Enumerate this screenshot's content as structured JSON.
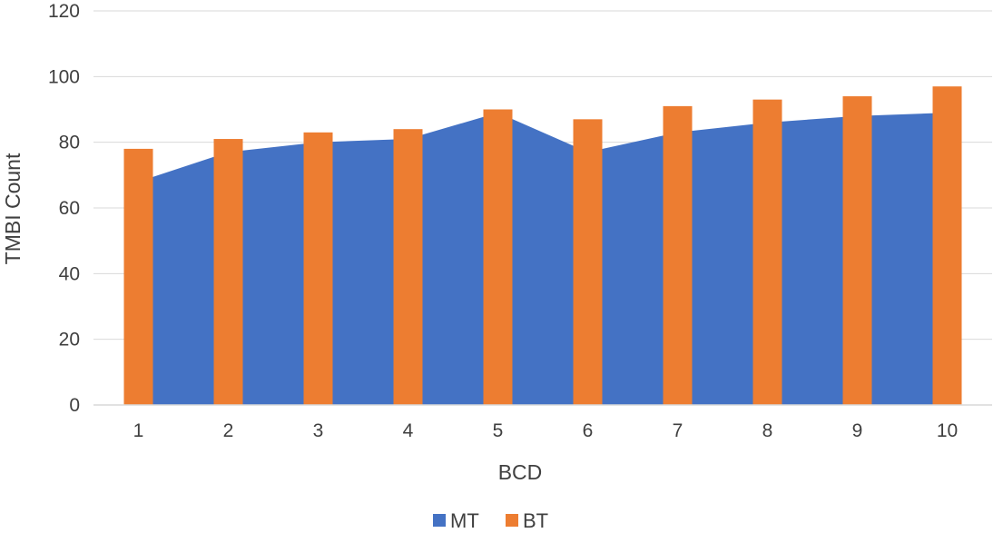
{
  "chart_data": {
    "type": "bar",
    "title": "",
    "xlabel": "BCD",
    "ylabel": "TMBI Count",
    "categories": [
      "1",
      "2",
      "3",
      "4",
      "5",
      "6",
      "7",
      "8",
      "9",
      "10"
    ],
    "ylim": [
      0,
      120
    ],
    "yticks": [
      "0",
      "20",
      "40",
      "60",
      "80",
      "100",
      "120"
    ],
    "grid": true,
    "legend_position": "bottom",
    "series": [
      {
        "name": "MT",
        "type": "area",
        "color": "#4472c4",
        "values": [
          68,
          77,
          80,
          81,
          89,
          77,
          83,
          86,
          88,
          89
        ]
      },
      {
        "name": "BT",
        "type": "bar",
        "color": "#ed7d31",
        "values": [
          78,
          81,
          83,
          84,
          90,
          87,
          91,
          93,
          94,
          97
        ]
      }
    ]
  }
}
